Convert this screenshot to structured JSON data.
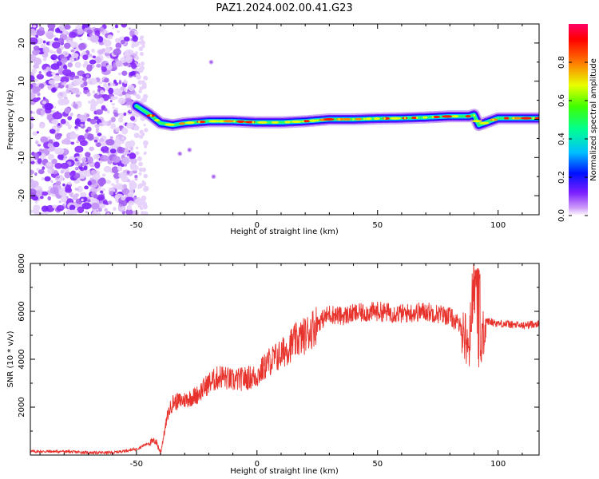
{
  "figure": {
    "title": "PAZ1.2024.002.00.41.G23"
  },
  "chart_data": [
    {
      "type": "heatmap",
      "xlabel": "Height of straight line (km)",
      "ylabel": "Frequency (Hz)",
      "xlim": [
        -94,
        117
      ],
      "ylim": [
        -25,
        25
      ],
      "xticks": [
        -50,
        0,
        50,
        100
      ],
      "yticks": [
        -20,
        -10,
        0,
        10,
        20
      ],
      "colorbar": {
        "label": "Normalized spectral amplitude",
        "ticks": [
          0.0,
          0.2,
          0.4,
          0.6,
          0.8
        ],
        "range": [
          0,
          1
        ]
      },
      "noise_region_x": [
        -94,
        -50
      ],
      "ridge": {
        "x": [
          -50,
          -45,
          -40,
          -35,
          -30,
          -20,
          -10,
          0,
          10,
          20,
          30,
          40,
          50,
          60,
          70,
          80,
          88,
          90,
          92,
          100,
          110,
          117
        ],
        "frequency": [
          3.5,
          1.5,
          -1.0,
          -1.5,
          -1.0,
          -0.5,
          -0.5,
          -0.8,
          -0.8,
          -0.5,
          0.0,
          0.0,
          0.2,
          0.3,
          0.5,
          0.8,
          0.8,
          1.2,
          -1.5,
          0.3,
          0.3,
          0.3
        ]
      },
      "isolated_blobs": [
        {
          "x": -32,
          "frequency": -9
        },
        {
          "x": -28,
          "frequency": -8
        },
        {
          "x": -18,
          "frequency": -15
        },
        {
          "x": -19,
          "frequency": 15
        }
      ],
      "grid": false
    },
    {
      "type": "line",
      "xlabel": "Height of straight line (km)",
      "ylabel": "SNR (10 * v/v)",
      "xlim": [
        -94,
        117
      ],
      "ylim": [
        0,
        8000
      ],
      "xticks": [
        -50,
        0,
        50,
        100
      ],
      "yticks": [
        2000,
        4000,
        6000,
        8000
      ],
      "series": [
        {
          "color": "#e8322c",
          "x": [
            -94,
            -80,
            -70,
            -60,
            -50,
            -45,
            -42,
            -40,
            -37,
            -35,
            -30,
            -25,
            -20,
            -15,
            -10,
            -5,
            0,
            5,
            10,
            15,
            20,
            25,
            30,
            35,
            40,
            50,
            60,
            70,
            80,
            85,
            88,
            90,
            92,
            93,
            95,
            100,
            110,
            117
          ],
          "values": [
            150,
            150,
            100,
            100,
            250,
            500,
            600,
            100,
            1700,
            2200,
            2300,
            2500,
            3000,
            3300,
            3100,
            3200,
            3300,
            3900,
            4200,
            4700,
            5000,
            5500,
            5900,
            5800,
            5900,
            6000,
            5900,
            6000,
            5800,
            5300,
            4500,
            7600,
            4200,
            4500,
            5600,
            5500,
            5400,
            5500
          ]
        }
      ],
      "grid": false
    }
  ],
  "colors": {
    "snr_line": "#e8322c",
    "noise_scatter": "#7a1fff"
  }
}
